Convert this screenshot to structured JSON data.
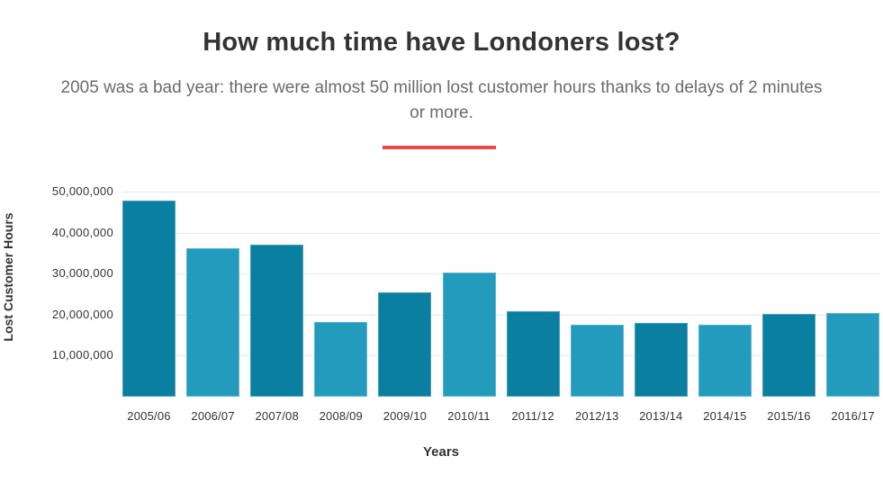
{
  "header": {
    "title": "How much time have Londoners lost?",
    "subtitle": "2005 was a bad year: there were almost 50 million lost customer hours thanks to delays of 2 minutes or more."
  },
  "colors": {
    "accent_divider": "#e8474c",
    "bar_dark": "#0a7fa0",
    "bar_light": "#229bbd",
    "gridline": "#e3e8ec",
    "text": "#333333",
    "subtitle_text": "#6b6b6b"
  },
  "axes": {
    "ylabel": "Lost Customer Hours",
    "xlabel": "Years",
    "yticks": [
      "50,000,000",
      "40,000,000",
      "30,000,000",
      "20,000,000",
      "10,000,000"
    ]
  },
  "chart_data": {
    "type": "bar",
    "title": "How much time have Londoners lost?",
    "subtitle": "2005 was a bad year: there were almost 50 million lost customer hours thanks to delays of 2 minutes or more.",
    "xlabel": "Years",
    "ylabel": "Lost Customer Hours",
    "categories": [
      "2005/06",
      "2006/07",
      "2007/08",
      "2008/09",
      "2009/10",
      "2010/11",
      "2011/12",
      "2012/13",
      "2013/14",
      "2014/15",
      "2015/16",
      "2016/17"
    ],
    "values": [
      47800000,
      36100000,
      37100000,
      18300000,
      25400000,
      30200000,
      20900000,
      17500000,
      18000000,
      17500000,
      20200000,
      20400000
    ],
    "ylim": [
      0,
      50000000
    ],
    "yticks": [
      10000000,
      20000000,
      30000000,
      40000000,
      50000000
    ],
    "grid": true,
    "legend": null,
    "bar_colors_alternating": [
      "#0a7fa0",
      "#229bbd"
    ]
  }
}
